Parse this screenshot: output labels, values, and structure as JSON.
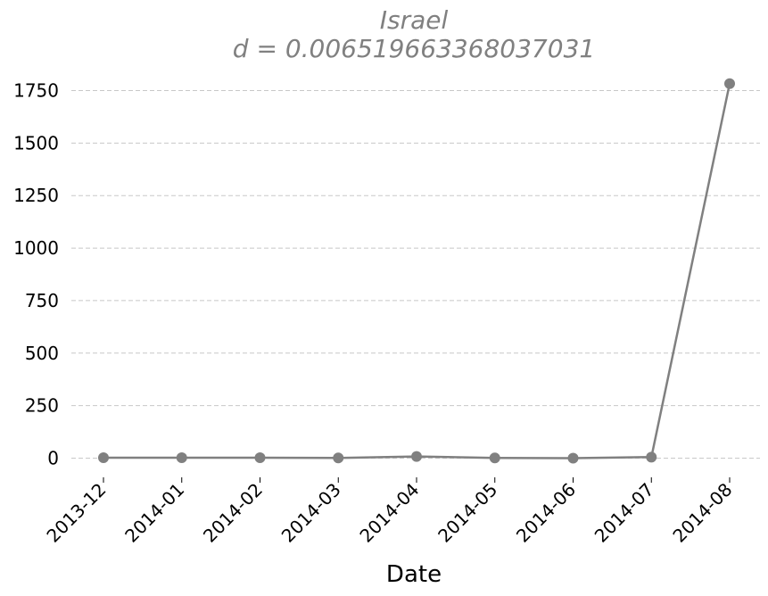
{
  "chart_data": {
    "type": "line",
    "title": "Israel",
    "subtitle": "d = 0.006519663368037031",
    "xlabel": "Date",
    "ylabel": "",
    "categories": [
      "2013-12",
      "2014-01",
      "2014-02",
      "2014-03",
      "2014-04",
      "2014-05",
      "2014-06",
      "2014-07",
      "2014-08"
    ],
    "series": [
      {
        "values": [
          2,
          2,
          2,
          1,
          8,
          1,
          0,
          5,
          1783
        ]
      }
    ],
    "ylim": [
      -70,
      1880
    ],
    "yticks": [
      0,
      250,
      500,
      750,
      1000,
      1250,
      1500,
      1750
    ],
    "grid": "horizontal-dashed",
    "line_color": "#808080",
    "grid_color": "#c8c8c8"
  }
}
